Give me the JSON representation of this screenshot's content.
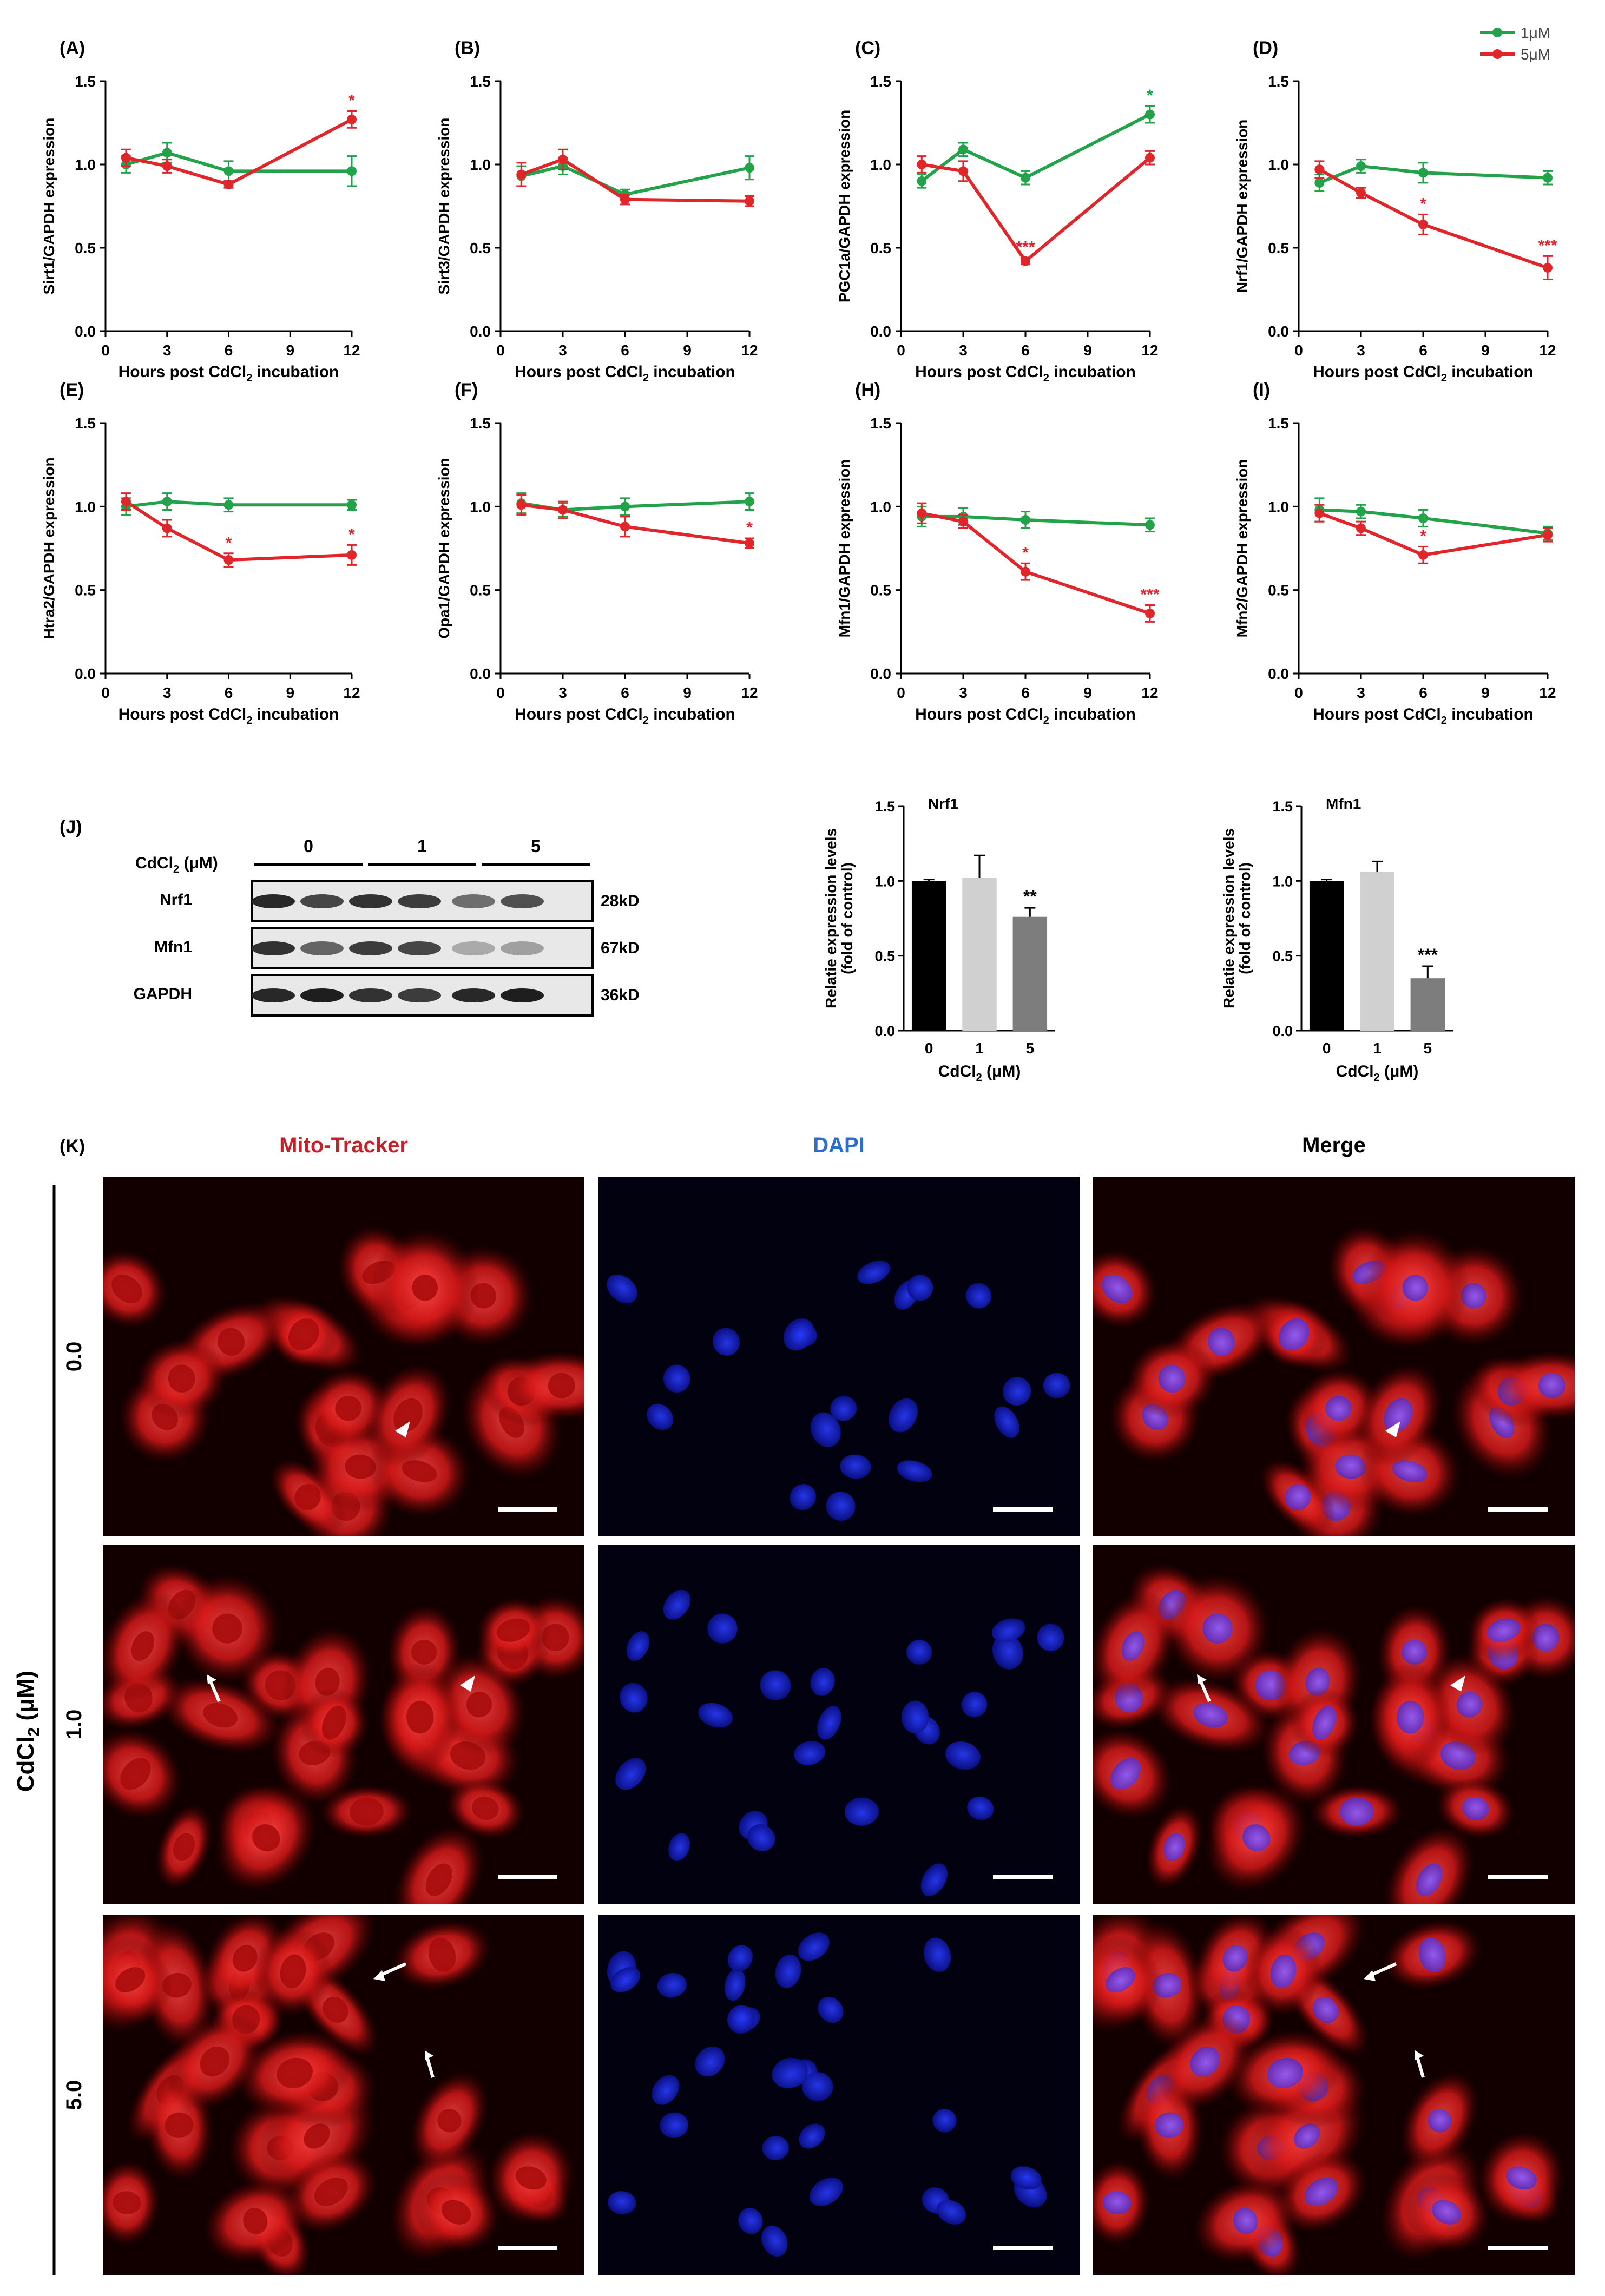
{
  "legend": {
    "series": [
      {
        "name": "1μM",
        "color": "#22a34a"
      },
      {
        "name": "5μM",
        "color": "#e0262b"
      }
    ]
  },
  "chart_data": [
    {
      "panel": "(A)",
      "type": "line",
      "x": [
        1,
        3,
        6,
        12
      ],
      "xticks": [
        "0",
        "3",
        "6",
        "9",
        "12"
      ],
      "xlim": [
        0,
        12
      ],
      "yticks": [
        "0.0",
        "0.5",
        "1.0",
        "1.5"
      ],
      "ylim": [
        0,
        1.5
      ],
      "xlabel": "Hours post CdCl",
      "xlabel_sub": "2",
      "xlabel_tail": " incubation",
      "ylabel": "Sirt1/GAPDH expression",
      "series": [
        {
          "name": "1μM",
          "values": [
            1.0,
            1.07,
            0.96,
            0.96
          ],
          "err": [
            0.05,
            0.06,
            0.06,
            0.09
          ],
          "stars": [
            "",
            "",
            "",
            ""
          ]
        },
        {
          "name": "5μM",
          "values": [
            1.04,
            0.99,
            0.88,
            1.27
          ],
          "err": [
            0.05,
            0.04,
            0.02,
            0.05
          ],
          "stars": [
            "",
            "",
            "",
            "*"
          ]
        }
      ]
    },
    {
      "panel": "(B)",
      "type": "line",
      "x": [
        1,
        3,
        6,
        12
      ],
      "xticks": [
        "0",
        "3",
        "6",
        "9",
        "12"
      ],
      "xlim": [
        0,
        12
      ],
      "yticks": [
        "0.0",
        "0.5",
        "1.0",
        "1.5"
      ],
      "ylim": [
        0,
        1.5
      ],
      "xlabel": "Hours post CdCl",
      "xlabel_sub": "2",
      "xlabel_tail": " incubation",
      "ylabel": "Sirt3/GAPDH expression",
      "series": [
        {
          "name": "1μM",
          "values": [
            0.93,
            0.99,
            0.82,
            0.98
          ],
          "err": [
            0.06,
            0.05,
            0.03,
            0.07
          ],
          "stars": [
            "",
            "",
            "",
            ""
          ]
        },
        {
          "name": "5μM",
          "values": [
            0.94,
            1.03,
            0.79,
            0.78
          ],
          "err": [
            0.07,
            0.06,
            0.03,
            0.03
          ],
          "stars": [
            "",
            "",
            "",
            ""
          ]
        }
      ]
    },
    {
      "panel": "(C)",
      "type": "line",
      "x": [
        1,
        3,
        6,
        12
      ],
      "xticks": [
        "0",
        "3",
        "6",
        "9",
        "12"
      ],
      "xlim": [
        0,
        12
      ],
      "yticks": [
        "0.0",
        "0.5",
        "1.0",
        "1.5"
      ],
      "ylim": [
        0,
        1.5
      ],
      "xlabel": "Hours post CdCl",
      "xlabel_sub": "2",
      "xlabel_tail": " incubation",
      "ylabel": "PGC1a/GAPDH expression",
      "series": [
        {
          "name": "1μM",
          "values": [
            0.9,
            1.09,
            0.92,
            1.3
          ],
          "err": [
            0.04,
            0.04,
            0.04,
            0.05
          ],
          "stars": [
            "",
            "",
            "",
            "*"
          ]
        },
        {
          "name": "5μM",
          "values": [
            1.0,
            0.96,
            0.42,
            1.04
          ],
          "err": [
            0.05,
            0.06,
            0.02,
            0.04
          ],
          "stars": [
            "",
            "",
            "***",
            ""
          ]
        }
      ]
    },
    {
      "panel": "(D)",
      "type": "line",
      "x": [
        1,
        3,
        6,
        12
      ],
      "xticks": [
        "0",
        "3",
        "6",
        "9",
        "12"
      ],
      "xlim": [
        0,
        12
      ],
      "yticks": [
        "0.0",
        "0.5",
        "1.0",
        "1.5"
      ],
      "ylim": [
        0,
        1.5
      ],
      "xlabel": "Hours post CdCl",
      "xlabel_sub": "2",
      "xlabel_tail": " incubation",
      "ylabel": "Nrf1/GAPDH expression",
      "series": [
        {
          "name": "1μM",
          "values": [
            0.89,
            0.99,
            0.95,
            0.92
          ],
          "err": [
            0.05,
            0.04,
            0.06,
            0.04
          ],
          "stars": [
            "",
            "",
            "",
            ""
          ]
        },
        {
          "name": "5μM",
          "values": [
            0.97,
            0.83,
            0.64,
            0.38
          ],
          "err": [
            0.05,
            0.03,
            0.06,
            0.07
          ],
          "stars": [
            "",
            "",
            "*",
            "***"
          ]
        }
      ]
    },
    {
      "panel": "(E)",
      "type": "line",
      "x": [
        1,
        3,
        6,
        12
      ],
      "xticks": [
        "0",
        "3",
        "6",
        "9",
        "12"
      ],
      "xlim": [
        0,
        12
      ],
      "yticks": [
        "0.0",
        "0.5",
        "1.0",
        "1.5"
      ],
      "ylim": [
        0,
        1.5
      ],
      "xlabel": "Hours post CdCl",
      "xlabel_sub": "2",
      "xlabel_tail": " incubation",
      "ylabel": "Htra2/GAPDH expression",
      "series": [
        {
          "name": "1μM",
          "values": [
            1.0,
            1.03,
            1.01,
            1.01
          ],
          "err": [
            0.05,
            0.05,
            0.04,
            0.03
          ],
          "stars": [
            "",
            "",
            "",
            ""
          ]
        },
        {
          "name": "5μM",
          "values": [
            1.03,
            0.87,
            0.68,
            0.71
          ],
          "err": [
            0.05,
            0.05,
            0.04,
            0.06
          ],
          "stars": [
            "",
            "",
            "*",
            "*"
          ]
        }
      ]
    },
    {
      "panel": "(F)",
      "type": "line",
      "x": [
        1,
        3,
        6,
        12
      ],
      "xticks": [
        "0",
        "3",
        "6",
        "9",
        "12"
      ],
      "xlim": [
        0,
        12
      ],
      "yticks": [
        "0.0",
        "0.5",
        "1.0",
        "1.5"
      ],
      "ylim": [
        0,
        1.5
      ],
      "xlabel": "Hours post CdCl",
      "xlabel_sub": "2",
      "xlabel_tail": " incubation",
      "ylabel": "Opa1/GAPDH expression",
      "series": [
        {
          "name": "1μM",
          "values": [
            1.02,
            0.98,
            1.0,
            1.03
          ],
          "err": [
            0.06,
            0.04,
            0.05,
            0.05
          ],
          "stars": [
            "",
            "",
            "",
            ""
          ]
        },
        {
          "name": "5μM",
          "values": [
            1.01,
            0.98,
            0.88,
            0.78
          ],
          "err": [
            0.06,
            0.05,
            0.06,
            0.03
          ],
          "stars": [
            "",
            "",
            "",
            "*"
          ]
        }
      ]
    },
    {
      "panel": "(H)",
      "type": "line",
      "x": [
        1,
        3,
        6,
        12
      ],
      "xticks": [
        "0",
        "3",
        "6",
        "9",
        "12"
      ],
      "xlim": [
        0,
        12
      ],
      "yticks": [
        "0.0",
        "0.5",
        "1.0",
        "1.5"
      ],
      "ylim": [
        0,
        1.5
      ],
      "xlabel": "Hours post CdCl",
      "xlabel_sub": "2",
      "xlabel_tail": " incubation",
      "ylabel": "Mfn1/GAPDH expression",
      "series": [
        {
          "name": "1μM",
          "values": [
            0.94,
            0.94,
            0.92,
            0.89
          ],
          "err": [
            0.06,
            0.05,
            0.05,
            0.04
          ],
          "stars": [
            "",
            "",
            "",
            ""
          ]
        },
        {
          "name": "5μM",
          "values": [
            0.96,
            0.91,
            0.61,
            0.36
          ],
          "err": [
            0.06,
            0.04,
            0.05,
            0.05
          ],
          "stars": [
            "",
            "",
            "*",
            "***"
          ]
        }
      ]
    },
    {
      "panel": "(I)",
      "type": "line",
      "x": [
        1,
        3,
        6,
        12
      ],
      "xticks": [
        "0",
        "3",
        "6",
        "9",
        "12"
      ],
      "xlim": [
        0,
        12
      ],
      "yticks": [
        "0.0",
        "0.5",
        "1.0",
        "1.5"
      ],
      "ylim": [
        0,
        1.5
      ],
      "xlabel": "Hours post CdCl",
      "xlabel_sub": "2",
      "xlabel_tail": " incubation",
      "ylabel": "Mfn2/GAPDH expression",
      "series": [
        {
          "name": "1μM",
          "values": [
            0.98,
            0.97,
            0.93,
            0.84
          ],
          "err": [
            0.07,
            0.04,
            0.05,
            0.04
          ],
          "stars": [
            "",
            "",
            "",
            ""
          ]
        },
        {
          "name": "5μM",
          "values": [
            0.96,
            0.87,
            0.71,
            0.83
          ],
          "err": [
            0.05,
            0.04,
            0.05,
            0.04
          ],
          "stars": [
            "",
            "",
            "*",
            ""
          ]
        }
      ]
    },
    {
      "panel": "Nrf1",
      "type": "bar",
      "categories": [
        "0",
        "1",
        "5"
      ],
      "values": [
        1.0,
        1.02,
        0.76
      ],
      "err": [
        0.01,
        0.15,
        0.06
      ],
      "stars": [
        "",
        "",
        "**"
      ],
      "colors": [
        "#000000",
        "#d0d0d0",
        "#7d7d7d"
      ],
      "yticks": [
        "0.0",
        "0.5",
        "1.0",
        "1.5"
      ],
      "ylim": [
        0,
        1.5
      ],
      "ylabel": "Relatie expression levels",
      "ylabel2": "(fold of control)",
      "xlabel": "CdCl",
      "xlabel_sub": "2",
      "xlabel_tail": " (μM)"
    },
    {
      "panel": "Mfn1",
      "type": "bar",
      "categories": [
        "0",
        "1",
        "5"
      ],
      "values": [
        1.0,
        1.06,
        0.35
      ],
      "err": [
        0.01,
        0.07,
        0.08
      ],
      "stars": [
        "",
        "",
        "***"
      ],
      "colors": [
        "#000000",
        "#d0d0d0",
        "#7d7d7d"
      ],
      "yticks": [
        "0.0",
        "0.5",
        "1.0",
        "1.5"
      ],
      "ylim": [
        0,
        1.5
      ],
      "ylabel": "Relatie expression levels",
      "ylabel2": "(fold of control)",
      "xlabel": "CdCl",
      "xlabel_sub": "2",
      "xlabel_tail": " (μM)"
    }
  ],
  "blot": {
    "panel": "(J)",
    "cdcl2_label": "CdCl",
    "cdcl2_sub": "2",
    "cdcl2_tail": " (μM)",
    "groups": [
      "0",
      "1",
      "5"
    ],
    "rows": [
      {
        "protein": "Nrf1",
        "size": "28kD",
        "intensity": [
          0.9,
          0.75,
          0.85,
          0.8,
          0.55,
          0.7
        ]
      },
      {
        "protein": "Mfn1",
        "size": "67kD",
        "intensity": [
          0.85,
          0.6,
          0.8,
          0.75,
          0.25,
          0.3
        ]
      },
      {
        "protein": "GAPDH",
        "size": "36kD",
        "intensity": [
          0.9,
          0.95,
          0.85,
          0.8,
          0.9,
          0.95
        ]
      }
    ]
  },
  "microscopy": {
    "panel": "(K)",
    "columns": [
      {
        "label": "Mito-Tracker",
        "color": "#c8202a"
      },
      {
        "label": "DAPI",
        "color": "#2a6fd0"
      },
      {
        "label": "Merge",
        "color": "#000000"
      }
    ],
    "rows": [
      "0.0",
      "1.0",
      "5.0"
    ],
    "axis_label": "CdCl",
    "axis_sub": "2",
    "axis_tail": " (μM)"
  }
}
